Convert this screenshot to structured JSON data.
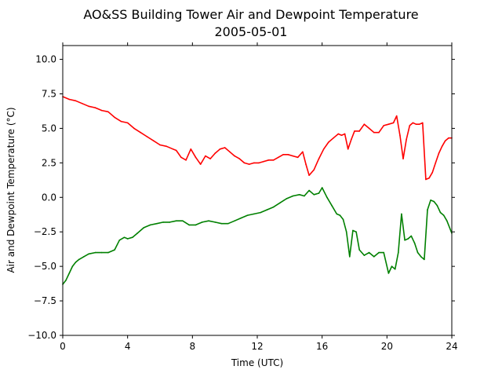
{
  "chart_data": {
    "type": "line",
    "title": "AO&SS Building Tower Air and Dewpoint Temperature",
    "subtitle": "2005-05-01",
    "xlabel": "Time (UTC)",
    "ylabel": "Air and Dewpoint Temperature (°C)",
    "xlim": [
      0,
      24
    ],
    "ylim": [
      -10.0,
      11.0
    ],
    "xticks": [
      0,
      4,
      8,
      12,
      16,
      20,
      24
    ],
    "yticks": [
      -10.0,
      -7.5,
      -5.0,
      -2.5,
      0.0,
      2.5,
      5.0,
      7.5,
      10.0
    ],
    "ytick_labels": [
      "−10.0",
      "−7.5",
      "−5.0",
      "−2.5",
      "0.0",
      "2.5",
      "5.0",
      "7.5",
      "10.0"
    ],
    "grid": false,
    "series": [
      {
        "color": "#ff0000",
        "x": [
          0,
          0.4,
          0.8,
          1.2,
          1.6,
          2.0,
          2.4,
          2.8,
          3.2,
          3.6,
          4.0,
          4.4,
          4.8,
          5.2,
          5.6,
          6.0,
          6.4,
          6.8,
          7.0,
          7.3,
          7.6,
          7.9,
          8.2,
          8.5,
          8.8,
          9.1,
          9.4,
          9.7,
          10.0,
          10.3,
          10.6,
          10.9,
          11.2,
          11.5,
          11.8,
          12.1,
          12.4,
          12.7,
          13.0,
          13.3,
          13.6,
          13.9,
          14.2,
          14.5,
          14.8,
          15.0,
          15.2,
          15.5,
          15.8,
          16.1,
          16.4,
          16.7,
          17.0,
          17.2,
          17.4,
          17.6,
          17.8,
          18.0,
          18.3,
          18.6,
          18.9,
          19.2,
          19.5,
          19.8,
          20.1,
          20.4,
          20.6,
          20.8,
          21.0,
          21.2,
          21.4,
          21.6,
          21.8,
          22.0,
          22.2,
          22.4,
          22.6,
          22.8,
          23.0,
          23.2,
          23.4,
          23.6,
          23.8,
          24.0
        ],
        "values": [
          7.3,
          7.1,
          7.0,
          6.8,
          6.6,
          6.5,
          6.3,
          6.2,
          5.8,
          5.5,
          5.4,
          5.0,
          4.7,
          4.4,
          4.1,
          3.8,
          3.7,
          3.5,
          3.4,
          2.9,
          2.7,
          3.5,
          2.9,
          2.4,
          3.0,
          2.8,
          3.2,
          3.5,
          3.6,
          3.3,
          3.0,
          2.8,
          2.5,
          2.4,
          2.5,
          2.5,
          2.6,
          2.7,
          2.7,
          2.9,
          3.1,
          3.1,
          3.0,
          2.9,
          3.3,
          2.4,
          1.6,
          2.0,
          2.8,
          3.5,
          4.0,
          4.3,
          4.6,
          4.5,
          4.6,
          3.5,
          4.2,
          4.8,
          4.8,
          5.3,
          5.0,
          4.7,
          4.7,
          5.2,
          5.3,
          5.4,
          5.9,
          4.5,
          2.8,
          4.2,
          5.2,
          5.4,
          5.3,
          5.3,
          5.4,
          1.3,
          1.4,
          1.8,
          2.5,
          3.2,
          3.7,
          4.1,
          4.3,
          4.3
        ]
      },
      {
        "color": "#008000",
        "x": [
          0,
          0.2,
          0.4,
          0.6,
          0.8,
          1.0,
          1.3,
          1.6,
          2.0,
          2.4,
          2.8,
          3.2,
          3.5,
          3.8,
          4.0,
          4.3,
          4.6,
          5.0,
          5.4,
          5.8,
          6.2,
          6.6,
          7.0,
          7.4,
          7.8,
          8.2,
          8.6,
          9.0,
          9.4,
          9.8,
          10.2,
          10.6,
          11.0,
          11.4,
          11.8,
          12.2,
          12.6,
          13.0,
          13.4,
          13.8,
          14.2,
          14.6,
          14.9,
          15.2,
          15.5,
          15.8,
          16.0,
          16.3,
          16.6,
          16.9,
          17.1,
          17.3,
          17.5,
          17.7,
          17.9,
          18.1,
          18.3,
          18.6,
          18.9,
          19.2,
          19.5,
          19.8,
          20.1,
          20.3,
          20.5,
          20.7,
          20.9,
          21.1,
          21.3,
          21.5,
          21.7,
          21.9,
          22.1,
          22.3,
          22.5,
          22.7,
          22.9,
          23.1,
          23.3,
          23.5,
          23.7,
          24.0
        ],
        "values": [
          -6.3,
          -6.0,
          -5.5,
          -5.0,
          -4.7,
          -4.5,
          -4.3,
          -4.1,
          -4.0,
          -4.0,
          -4.0,
          -3.8,
          -3.1,
          -2.9,
          -3.0,
          -2.9,
          -2.6,
          -2.2,
          -2.0,
          -1.9,
          -1.8,
          -1.8,
          -1.7,
          -1.7,
          -2.0,
          -2.0,
          -1.8,
          -1.7,
          -1.8,
          -1.9,
          -1.9,
          -1.7,
          -1.5,
          -1.3,
          -1.2,
          -1.1,
          -0.9,
          -0.7,
          -0.4,
          -0.1,
          0.1,
          0.2,
          0.1,
          0.5,
          0.2,
          0.3,
          0.7,
          0.0,
          -0.6,
          -1.2,
          -1.3,
          -1.6,
          -2.5,
          -4.3,
          -2.4,
          -2.5,
          -3.8,
          -4.2,
          -4.0,
          -4.3,
          -4.0,
          -4.0,
          -5.5,
          -5.0,
          -5.2,
          -4.0,
          -1.2,
          -3.1,
          -3.0,
          -2.8,
          -3.3,
          -4.0,
          -4.3,
          -4.5,
          -0.9,
          -0.2,
          -0.3,
          -0.6,
          -1.1,
          -1.3,
          -1.7,
          -2.6
        ]
      }
    ]
  }
}
